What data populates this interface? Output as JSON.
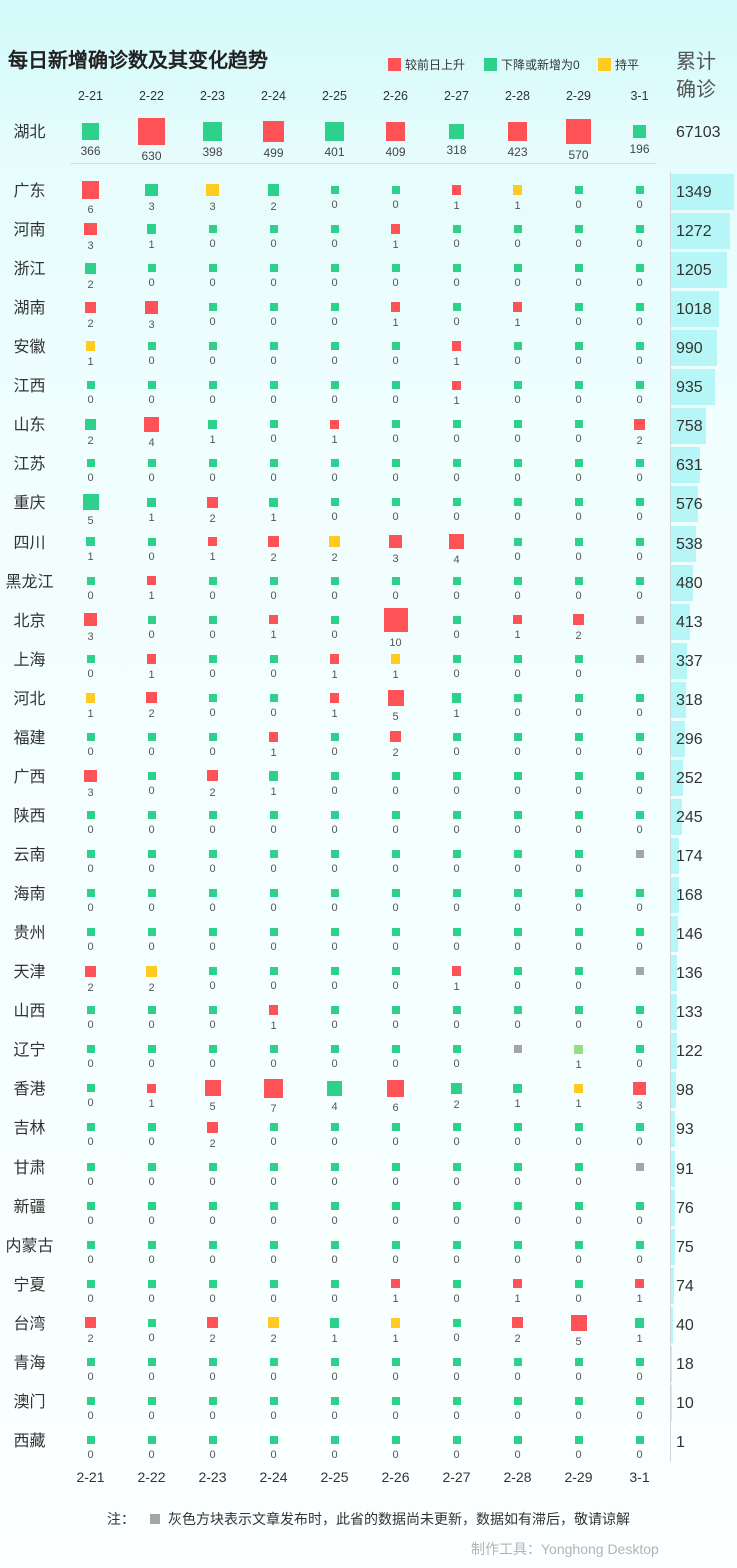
{
  "title": "每日新增确诊数及其变化趋势",
  "legend": [
    {
      "label": "较前日上升",
      "color": "#ff5256"
    },
    {
      "label": "下降或新增为0",
      "color": "#2dd18c"
    },
    {
      "label": "持平",
      "color": "#ffcb21"
    }
  ],
  "total_header": {
    "line1": "累计",
    "line2": "确诊"
  },
  "colors": {
    "red": "#ff5256",
    "green": "#2dd18c",
    "yellow": "#ffcb21",
    "gray": "#a6a6a6",
    "lightgreen": "#94dd86",
    "bar": "#b6f6f6"
  },
  "chart_data": {
    "type": "heatmap",
    "x": [
      "2-21",
      "2-22",
      "2-23",
      "2-24",
      "2-25",
      "2-26",
      "2-27",
      "2-28",
      "2-29",
      "3-1"
    ],
    "highlight_row": {
      "name": "湖北",
      "total": 67103,
      "values": [
        366,
        630,
        398,
        499,
        401,
        409,
        318,
        423,
        570,
        196
      ],
      "colors": [
        "green",
        "red",
        "green",
        "red",
        "green",
        "red",
        "green",
        "red",
        "red",
        "green"
      ]
    },
    "rows": [
      {
        "name": "广东",
        "total": 1349,
        "values": [
          6,
          3,
          3,
          2,
          0,
          0,
          1,
          1,
          0,
          0
        ],
        "colors": [
          "red",
          "green",
          "yellow",
          "green",
          "green",
          "green",
          "red",
          "yellow",
          "green",
          "green"
        ]
      },
      {
        "name": "河南",
        "total": 1272,
        "values": [
          3,
          1,
          0,
          0,
          0,
          1,
          0,
          0,
          0,
          0
        ],
        "colors": [
          "red",
          "green",
          "green",
          "green",
          "green",
          "red",
          "green",
          "green",
          "green",
          "green"
        ]
      },
      {
        "name": "浙江",
        "total": 1205,
        "values": [
          2,
          0,
          0,
          0,
          0,
          0,
          0,
          0,
          0,
          0
        ],
        "colors": [
          "green",
          "green",
          "green",
          "green",
          "green",
          "green",
          "green",
          "green",
          "green",
          "green"
        ]
      },
      {
        "name": "湖南",
        "total": 1018,
        "values": [
          2,
          3,
          0,
          0,
          0,
          1,
          0,
          1,
          0,
          0
        ],
        "colors": [
          "red",
          "red",
          "green",
          "green",
          "green",
          "red",
          "green",
          "red",
          "green",
          "green"
        ]
      },
      {
        "name": "安徽",
        "total": 990,
        "values": [
          1,
          0,
          0,
          0,
          0,
          0,
          1,
          0,
          0,
          0
        ],
        "colors": [
          "yellow",
          "green",
          "green",
          "green",
          "green",
          "green",
          "red",
          "green",
          "green",
          "green"
        ]
      },
      {
        "name": "江西",
        "total": 935,
        "values": [
          0,
          0,
          0,
          0,
          0,
          0,
          1,
          0,
          0,
          0
        ],
        "colors": [
          "green",
          "green",
          "green",
          "green",
          "green",
          "green",
          "red",
          "green",
          "green",
          "green"
        ]
      },
      {
        "name": "山东",
        "total": 758,
        "values": [
          2,
          4,
          1,
          0,
          1,
          0,
          0,
          0,
          0,
          2
        ],
        "colors": [
          "green",
          "red",
          "green",
          "green",
          "red",
          "green",
          "green",
          "green",
          "green",
          "red"
        ]
      },
      {
        "name": "江苏",
        "total": 631,
        "values": [
          0,
          0,
          0,
          0,
          0,
          0,
          0,
          0,
          0,
          0
        ],
        "colors": [
          "green",
          "green",
          "green",
          "green",
          "green",
          "green",
          "green",
          "green",
          "green",
          "green"
        ]
      },
      {
        "name": "重庆",
        "total": 576,
        "values": [
          5,
          1,
          2,
          1,
          0,
          0,
          0,
          0,
          0,
          0
        ],
        "colors": [
          "green",
          "green",
          "red",
          "green",
          "green",
          "green",
          "green",
          "green",
          "green",
          "green"
        ]
      },
      {
        "name": "四川",
        "total": 538,
        "values": [
          1,
          0,
          1,
          2,
          2,
          3,
          4,
          0,
          0,
          0
        ],
        "colors": [
          "green",
          "green",
          "red",
          "red",
          "yellow",
          "red",
          "red",
          "green",
          "green",
          "green"
        ]
      },
      {
        "name": "黑龙江",
        "total": 480,
        "values": [
          0,
          1,
          0,
          0,
          0,
          0,
          0,
          0,
          0,
          0
        ],
        "colors": [
          "green",
          "red",
          "green",
          "green",
          "green",
          "green",
          "green",
          "green",
          "green",
          "green"
        ]
      },
      {
        "name": "北京",
        "total": 413,
        "values": [
          3,
          0,
          0,
          1,
          0,
          10,
          0,
          1,
          2,
          null
        ],
        "colors": [
          "red",
          "green",
          "green",
          "red",
          "green",
          "red",
          "green",
          "red",
          "red",
          "gray"
        ]
      },
      {
        "name": "上海",
        "total": 337,
        "values": [
          0,
          1,
          0,
          0,
          1,
          1,
          0,
          0,
          0,
          null
        ],
        "colors": [
          "green",
          "red",
          "green",
          "green",
          "red",
          "yellow",
          "green",
          "green",
          "green",
          "gray"
        ]
      },
      {
        "name": "河北",
        "total": 318,
        "values": [
          1,
          2,
          0,
          0,
          1,
          5,
          1,
          0,
          0,
          0
        ],
        "colors": [
          "yellow",
          "red",
          "green",
          "green",
          "red",
          "red",
          "green",
          "green",
          "green",
          "green"
        ]
      },
      {
        "name": "福建",
        "total": 296,
        "values": [
          0,
          0,
          0,
          1,
          0,
          2,
          0,
          0,
          0,
          0
        ],
        "colors": [
          "green",
          "green",
          "green",
          "red",
          "green",
          "red",
          "green",
          "green",
          "green",
          "green"
        ]
      },
      {
        "name": "广西",
        "total": 252,
        "values": [
          3,
          0,
          2,
          1,
          0,
          0,
          0,
          0,
          0,
          0
        ],
        "colors": [
          "red",
          "green",
          "red",
          "green",
          "green",
          "green",
          "green",
          "green",
          "green",
          "green"
        ]
      },
      {
        "name": "陕西",
        "total": 245,
        "values": [
          0,
          0,
          0,
          0,
          0,
          0,
          0,
          0,
          0,
          0
        ],
        "colors": [
          "green",
          "green",
          "green",
          "green",
          "green",
          "green",
          "green",
          "green",
          "green",
          "green"
        ]
      },
      {
        "name": "云南",
        "total": 174,
        "values": [
          0,
          0,
          0,
          0,
          0,
          0,
          0,
          0,
          0,
          null
        ],
        "colors": [
          "green",
          "green",
          "green",
          "green",
          "green",
          "green",
          "green",
          "green",
          "green",
          "gray"
        ]
      },
      {
        "name": "海南",
        "total": 168,
        "values": [
          0,
          0,
          0,
          0,
          0,
          0,
          0,
          0,
          0,
          0
        ],
        "colors": [
          "green",
          "green",
          "green",
          "green",
          "green",
          "green",
          "green",
          "green",
          "green",
          "green"
        ]
      },
      {
        "name": "贵州",
        "total": 146,
        "values": [
          0,
          0,
          0,
          0,
          0,
          0,
          0,
          0,
          0,
          0
        ],
        "colors": [
          "green",
          "green",
          "green",
          "green",
          "green",
          "green",
          "green",
          "green",
          "green",
          "green"
        ]
      },
      {
        "name": "天津",
        "total": 136,
        "values": [
          2,
          2,
          0,
          0,
          0,
          0,
          1,
          0,
          0,
          null
        ],
        "colors": [
          "red",
          "yellow",
          "green",
          "green",
          "green",
          "green",
          "red",
          "green",
          "green",
          "gray"
        ]
      },
      {
        "name": "山西",
        "total": 133,
        "values": [
          0,
          0,
          0,
          1,
          0,
          0,
          0,
          0,
          0,
          0
        ],
        "colors": [
          "green",
          "green",
          "green",
          "red",
          "green",
          "green",
          "green",
          "green",
          "green",
          "green"
        ]
      },
      {
        "name": "辽宁",
        "total": 122,
        "values": [
          0,
          0,
          0,
          0,
          0,
          0,
          0,
          null,
          1,
          0
        ],
        "colors": [
          "green",
          "green",
          "green",
          "green",
          "green",
          "green",
          "green",
          "gray",
          "lightgreen",
          "green"
        ]
      },
      {
        "name": "香港",
        "total": 98,
        "values": [
          0,
          1,
          5,
          7,
          4,
          6,
          2,
          1,
          1,
          3
        ],
        "colors": [
          "green",
          "red",
          "red",
          "red",
          "green",
          "red",
          "green",
          "green",
          "yellow",
          "red"
        ]
      },
      {
        "name": "吉林",
        "total": 93,
        "values": [
          0,
          0,
          2,
          0,
          0,
          0,
          0,
          0,
          0,
          0
        ],
        "colors": [
          "green",
          "green",
          "red",
          "green",
          "green",
          "green",
          "green",
          "green",
          "green",
          "green"
        ]
      },
      {
        "name": "甘肃",
        "total": 91,
        "values": [
          0,
          0,
          0,
          0,
          0,
          0,
          0,
          0,
          0,
          null
        ],
        "colors": [
          "green",
          "green",
          "green",
          "green",
          "green",
          "green",
          "green",
          "green",
          "green",
          "gray"
        ]
      },
      {
        "name": "新疆",
        "total": 76,
        "values": [
          0,
          0,
          0,
          0,
          0,
          0,
          0,
          0,
          0,
          0
        ],
        "colors": [
          "green",
          "green",
          "green",
          "green",
          "green",
          "green",
          "green",
          "green",
          "green",
          "green"
        ]
      },
      {
        "name": "内蒙古",
        "total": 75,
        "values": [
          0,
          0,
          0,
          0,
          0,
          0,
          0,
          0,
          0,
          0
        ],
        "colors": [
          "green",
          "green",
          "green",
          "green",
          "green",
          "green",
          "green",
          "green",
          "green",
          "green"
        ]
      },
      {
        "name": "宁夏",
        "total": 74,
        "values": [
          0,
          0,
          0,
          0,
          0,
          1,
          0,
          1,
          0,
          1
        ],
        "colors": [
          "green",
          "green",
          "green",
          "green",
          "green",
          "red",
          "green",
          "red",
          "green",
          "red"
        ]
      },
      {
        "name": "台湾",
        "total": 40,
        "values": [
          2,
          0,
          2,
          2,
          1,
          1,
          0,
          2,
          5,
          1
        ],
        "colors": [
          "red",
          "green",
          "red",
          "yellow",
          "green",
          "yellow",
          "green",
          "red",
          "red",
          "green"
        ]
      },
      {
        "name": "青海",
        "total": 18,
        "values": [
          0,
          0,
          0,
          0,
          0,
          0,
          0,
          0,
          0,
          0
        ],
        "colors": [
          "green",
          "green",
          "green",
          "green",
          "green",
          "green",
          "green",
          "green",
          "green",
          "green"
        ]
      },
      {
        "name": "澳门",
        "total": 10,
        "values": [
          0,
          0,
          0,
          0,
          0,
          0,
          0,
          0,
          0,
          0
        ],
        "colors": [
          "green",
          "green",
          "green",
          "green",
          "green",
          "green",
          "green",
          "green",
          "green",
          "green"
        ]
      },
      {
        "name": "西藏",
        "total": 1,
        "values": [
          0,
          0,
          0,
          0,
          0,
          0,
          0,
          0,
          0,
          0
        ],
        "colors": [
          "green",
          "green",
          "green",
          "green",
          "green",
          "green",
          "green",
          "green",
          "green",
          "green"
        ]
      }
    ]
  },
  "note": {
    "prefix": "注：",
    "text": "灰色方块表示文章发布时，此省的数据尚未更新，数据如有滞后，敬请谅解"
  },
  "footer": "制作工具：Yonghong Desktop"
}
